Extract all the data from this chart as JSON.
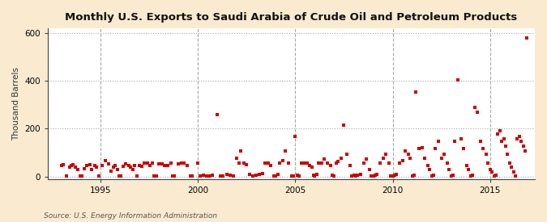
{
  "title": "Monthly U.S. Exports to Saudi Arabia of Crude Oil and Petroleum Products",
  "ylabel": "Thousand Barrels",
  "source": "Source: U.S. Energy Information Administration",
  "background_color": "#faebd0",
  "plot_bg_color": "#ffffff",
  "marker_color": "#cc0000",
  "marker_size": 5,
  "xlim": [
    1992.3,
    2017.3
  ],
  "ylim": [
    -10,
    620
  ],
  "yticks": [
    0,
    200,
    400,
    600
  ],
  "xticks": [
    1995,
    2000,
    2005,
    2010,
    2015
  ],
  "data": [
    [
      1993.0,
      45
    ],
    [
      1993.1,
      50
    ],
    [
      1993.25,
      3
    ],
    [
      1993.4,
      40
    ],
    [
      1993.5,
      48
    ],
    [
      1993.6,
      50
    ],
    [
      1993.7,
      38
    ],
    [
      1993.83,
      30
    ],
    [
      1993.95,
      4
    ],
    [
      1994.05,
      3
    ],
    [
      1994.15,
      32
    ],
    [
      1994.3,
      48
    ],
    [
      1994.45,
      50
    ],
    [
      1994.55,
      28
    ],
    [
      1994.7,
      45
    ],
    [
      1994.8,
      38
    ],
    [
      1994.9,
      3
    ],
    [
      1995.1,
      48
    ],
    [
      1995.25,
      68
    ],
    [
      1995.4,
      52
    ],
    [
      1995.55,
      22
    ],
    [
      1995.65,
      38
    ],
    [
      1995.75,
      48
    ],
    [
      1995.85,
      28
    ],
    [
      1995.95,
      3
    ],
    [
      1996.05,
      3
    ],
    [
      1996.15,
      42
    ],
    [
      1996.3,
      52
    ],
    [
      1996.45,
      48
    ],
    [
      1996.55,
      38
    ],
    [
      1996.65,
      28
    ],
    [
      1996.75,
      48
    ],
    [
      1996.85,
      3
    ],
    [
      1997.0,
      48
    ],
    [
      1997.1,
      42
    ],
    [
      1997.25,
      58
    ],
    [
      1997.4,
      58
    ],
    [
      1997.55,
      48
    ],
    [
      1997.65,
      58
    ],
    [
      1997.75,
      3
    ],
    [
      1997.85,
      3
    ],
    [
      1998.0,
      52
    ],
    [
      1998.15,
      52
    ],
    [
      1998.3,
      48
    ],
    [
      1998.45,
      48
    ],
    [
      1998.6,
      58
    ],
    [
      1998.7,
      3
    ],
    [
      1998.8,
      3
    ],
    [
      1999.0,
      52
    ],
    [
      1999.15,
      58
    ],
    [
      1999.3,
      58
    ],
    [
      1999.45,
      48
    ],
    [
      1999.6,
      3
    ],
    [
      1999.7,
      3
    ],
    [
      2000.0,
      58
    ],
    [
      2000.1,
      3
    ],
    [
      2000.3,
      5
    ],
    [
      2000.45,
      3
    ],
    [
      2000.6,
      3
    ],
    [
      2000.75,
      5
    ],
    [
      2001.0,
      258
    ],
    [
      2001.15,
      3
    ],
    [
      2001.3,
      3
    ],
    [
      2001.5,
      8
    ],
    [
      2001.65,
      5
    ],
    [
      2001.8,
      3
    ],
    [
      2002.0,
      78
    ],
    [
      2002.1,
      58
    ],
    [
      2002.2,
      108
    ],
    [
      2002.35,
      55
    ],
    [
      2002.5,
      50
    ],
    [
      2002.65,
      8
    ],
    [
      2002.8,
      3
    ],
    [
      2003.0,
      5
    ],
    [
      2003.15,
      8
    ],
    [
      2003.3,
      12
    ],
    [
      2003.45,
      55
    ],
    [
      2003.6,
      58
    ],
    [
      2003.75,
      48
    ],
    [
      2003.9,
      3
    ],
    [
      2004.0,
      3
    ],
    [
      2004.1,
      8
    ],
    [
      2004.2,
      55
    ],
    [
      2004.35,
      65
    ],
    [
      2004.5,
      108
    ],
    [
      2004.65,
      55
    ],
    [
      2004.8,
      3
    ],
    [
      2004.9,
      3
    ],
    [
      2005.0,
      168
    ],
    [
      2005.1,
      5
    ],
    [
      2005.2,
      3
    ],
    [
      2005.3,
      55
    ],
    [
      2005.45,
      58
    ],
    [
      2005.6,
      58
    ],
    [
      2005.75,
      48
    ],
    [
      2005.85,
      38
    ],
    [
      2005.95,
      5
    ],
    [
      2006.0,
      3
    ],
    [
      2006.1,
      8
    ],
    [
      2006.2,
      55
    ],
    [
      2006.35,
      58
    ],
    [
      2006.5,
      72
    ],
    [
      2006.65,
      58
    ],
    [
      2006.8,
      48
    ],
    [
      2006.9,
      5
    ],
    [
      2007.0,
      3
    ],
    [
      2007.1,
      55
    ],
    [
      2007.2,
      62
    ],
    [
      2007.35,
      78
    ],
    [
      2007.5,
      215
    ],
    [
      2007.65,
      95
    ],
    [
      2007.8,
      48
    ],
    [
      2007.9,
      3
    ],
    [
      2008.0,
      5
    ],
    [
      2008.1,
      3
    ],
    [
      2008.2,
      5
    ],
    [
      2008.35,
      8
    ],
    [
      2008.5,
      55
    ],
    [
      2008.65,
      72
    ],
    [
      2008.8,
      28
    ],
    [
      2008.9,
      3
    ],
    [
      2009.0,
      3
    ],
    [
      2009.1,
      5
    ],
    [
      2009.2,
      8
    ],
    [
      2009.35,
      58
    ],
    [
      2009.5,
      78
    ],
    [
      2009.65,
      95
    ],
    [
      2009.8,
      58
    ],
    [
      2009.9,
      3
    ],
    [
      2010.0,
      3
    ],
    [
      2010.1,
      5
    ],
    [
      2010.2,
      8
    ],
    [
      2010.35,
      55
    ],
    [
      2010.5,
      68
    ],
    [
      2010.65,
      108
    ],
    [
      2010.8,
      95
    ],
    [
      2010.9,
      78
    ],
    [
      2011.0,
      3
    ],
    [
      2011.1,
      5
    ],
    [
      2011.2,
      352
    ],
    [
      2011.35,
      118
    ],
    [
      2011.5,
      122
    ],
    [
      2011.65,
      78
    ],
    [
      2011.8,
      48
    ],
    [
      2011.9,
      28
    ],
    [
      2012.0,
      3
    ],
    [
      2012.1,
      5
    ],
    [
      2012.2,
      118
    ],
    [
      2012.35,
      148
    ],
    [
      2012.5,
      78
    ],
    [
      2012.65,
      95
    ],
    [
      2012.8,
      58
    ],
    [
      2012.9,
      28
    ],
    [
      2013.0,
      3
    ],
    [
      2013.1,
      5
    ],
    [
      2013.2,
      148
    ],
    [
      2013.35,
      402
    ],
    [
      2013.5,
      158
    ],
    [
      2013.65,
      118
    ],
    [
      2013.8,
      48
    ],
    [
      2013.9,
      28
    ],
    [
      2014.0,
      3
    ],
    [
      2014.1,
      5
    ],
    [
      2014.2,
      288
    ],
    [
      2014.35,
      268
    ],
    [
      2014.5,
      148
    ],
    [
      2014.65,
      118
    ],
    [
      2014.8,
      95
    ],
    [
      2014.9,
      58
    ],
    [
      2015.0,
      28
    ],
    [
      2015.1,
      18
    ],
    [
      2015.2,
      3
    ],
    [
      2015.3,
      5
    ],
    [
      2015.4,
      178
    ],
    [
      2015.5,
      192
    ],
    [
      2015.6,
      148
    ],
    [
      2015.7,
      158
    ],
    [
      2015.8,
      128
    ],
    [
      2015.9,
      95
    ],
    [
      2016.0,
      58
    ],
    [
      2016.1,
      38
    ],
    [
      2016.2,
      18
    ],
    [
      2016.3,
      3
    ],
    [
      2016.4,
      158
    ],
    [
      2016.5,
      168
    ],
    [
      2016.6,
      148
    ],
    [
      2016.7,
      128
    ],
    [
      2016.8,
      108
    ],
    [
      2016.9,
      578
    ]
  ]
}
